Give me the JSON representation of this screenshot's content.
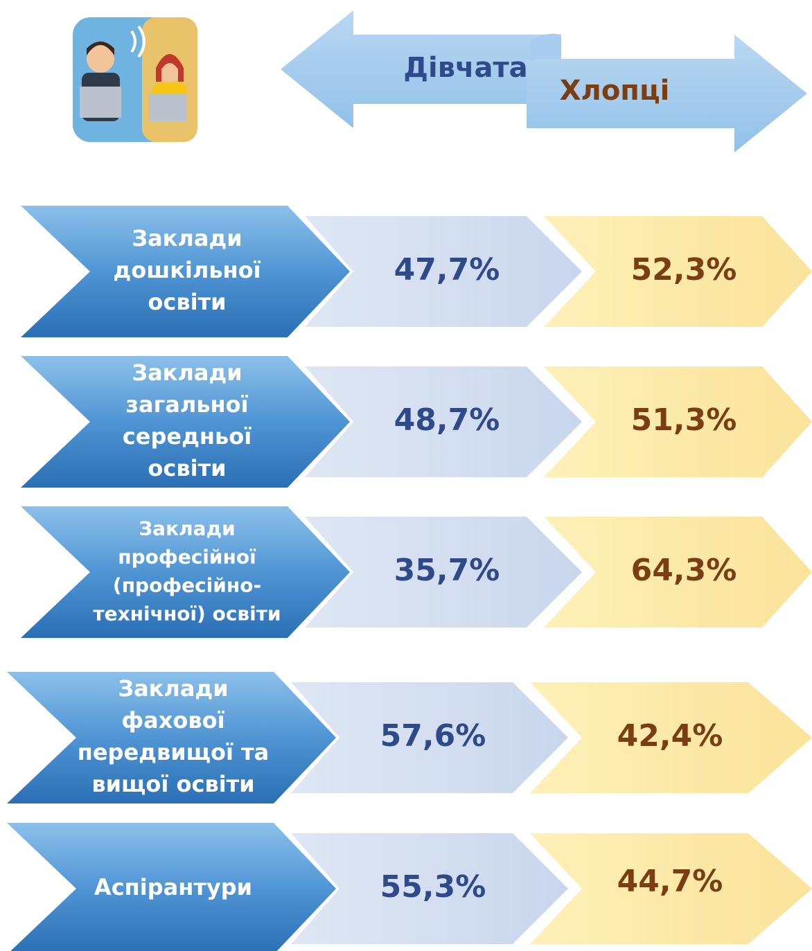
{
  "header": {
    "girls": "Дівчата",
    "boys": "Хлопці"
  },
  "rows": [
    {
      "label": [
        "Заклади",
        "дошкільної",
        "освіти"
      ],
      "girls": "47,7%",
      "boys": "52,3%"
    },
    {
      "label": [
        "Заклади",
        "загальної",
        "середньої",
        "освіти"
      ],
      "girls": "48,7%",
      "boys": "51,3%"
    },
    {
      "label": [
        "Заклади",
        "професійної",
        "(професійно-",
        "технічної) освіти"
      ],
      "girls": "35,7%",
      "boys": "64,3%"
    },
    {
      "label": [
        "Заклади",
        "фахової",
        "передвищої та",
        "вищої освіти"
      ],
      "girls": "57,6%",
      "boys": "42,4%"
    },
    {
      "label": [
        "Аспірантури"
      ],
      "girls": "55,3%",
      "boys": "44,7%"
    }
  ]
}
